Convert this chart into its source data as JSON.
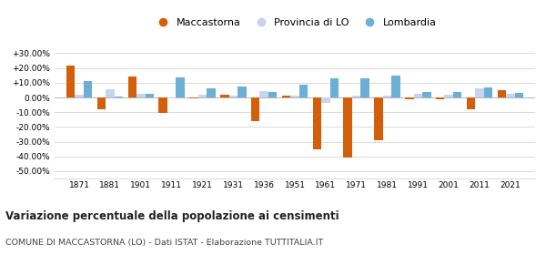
{
  "years": [
    1871,
    1881,
    1901,
    1911,
    1921,
    1931,
    1936,
    1951,
    1961,
    1971,
    1981,
    1991,
    2001,
    2011,
    2021
  ],
  "maccastorna": [
    21.5,
    -8.0,
    14.0,
    -10.5,
    -0.5,
    2.0,
    -16.0,
    1.0,
    -35.0,
    -41.0,
    -29.0,
    -1.5,
    -1.5,
    -8.0,
    5.0
  ],
  "provincia_lo": [
    2.0,
    5.5,
    2.5,
    -0.5,
    2.0,
    1.5,
    4.5,
    1.5,
    -4.0,
    1.5,
    1.0,
    2.5,
    2.0,
    6.5,
    2.5
  ],
  "lombardia": [
    11.0,
    0.5,
    2.5,
    13.5,
    6.0,
    7.5,
    4.0,
    8.5,
    13.0,
    13.0,
    15.0,
    4.0,
    3.5,
    7.0,
    3.0
  ],
  "color_maccastorna": "#d45f0a",
  "color_provincia": "#c5d4f0",
  "color_lombardia": "#6baed6",
  "title": "Variazione percentuale della popolazione ai censimenti",
  "subtitle": "COMUNE DI MACCASTORNA (LO) - Dati ISTAT - Elaborazione TUTTITALIA.IT",
  "ylim": [
    -55,
    35
  ],
  "yticks": [
    -50,
    -40,
    -30,
    -20,
    -10,
    0,
    10,
    20,
    30
  ],
  "legend_labels": [
    "Maccastorna",
    "Provincia di LO",
    "Lombardia"
  ],
  "bar_width": 0.28
}
